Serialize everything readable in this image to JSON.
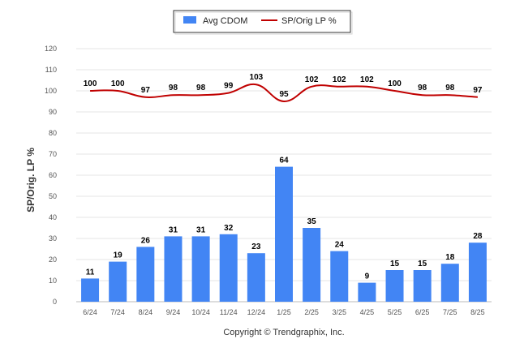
{
  "chart_data": {
    "type": "bar",
    "categories": [
      "6/24",
      "7/24",
      "8/24",
      "9/24",
      "10/24",
      "11/24",
      "12/24",
      "1/25",
      "2/25",
      "3/25",
      "4/25",
      "5/25",
      "6/25",
      "7/25",
      "8/25"
    ],
    "series": [
      {
        "name": "Avg CDOM",
        "type": "bar",
        "color": "#4285f4",
        "values": [
          11,
          19,
          26,
          31,
          31,
          32,
          23,
          64,
          35,
          24,
          9,
          15,
          15,
          18,
          28
        ]
      },
      {
        "name": "SP/Orig LP %",
        "type": "line",
        "color": "#c00000",
        "values": [
          100,
          100,
          97,
          98,
          98,
          99,
          103,
          95,
          102,
          102,
          102,
          100,
          98,
          98,
          97
        ]
      }
    ],
    "ylabel": "SP/Orig. LP %",
    "xlabel": "",
    "ylim": [
      0,
      120
    ],
    "yticks": [
      0,
      10,
      20,
      30,
      40,
      50,
      60,
      70,
      80,
      90,
      100,
      110,
      120
    ],
    "grid": true,
    "legend_position": "top-center"
  },
  "footer": {
    "copyright": "Copyright © Trendgraphix, Inc."
  }
}
